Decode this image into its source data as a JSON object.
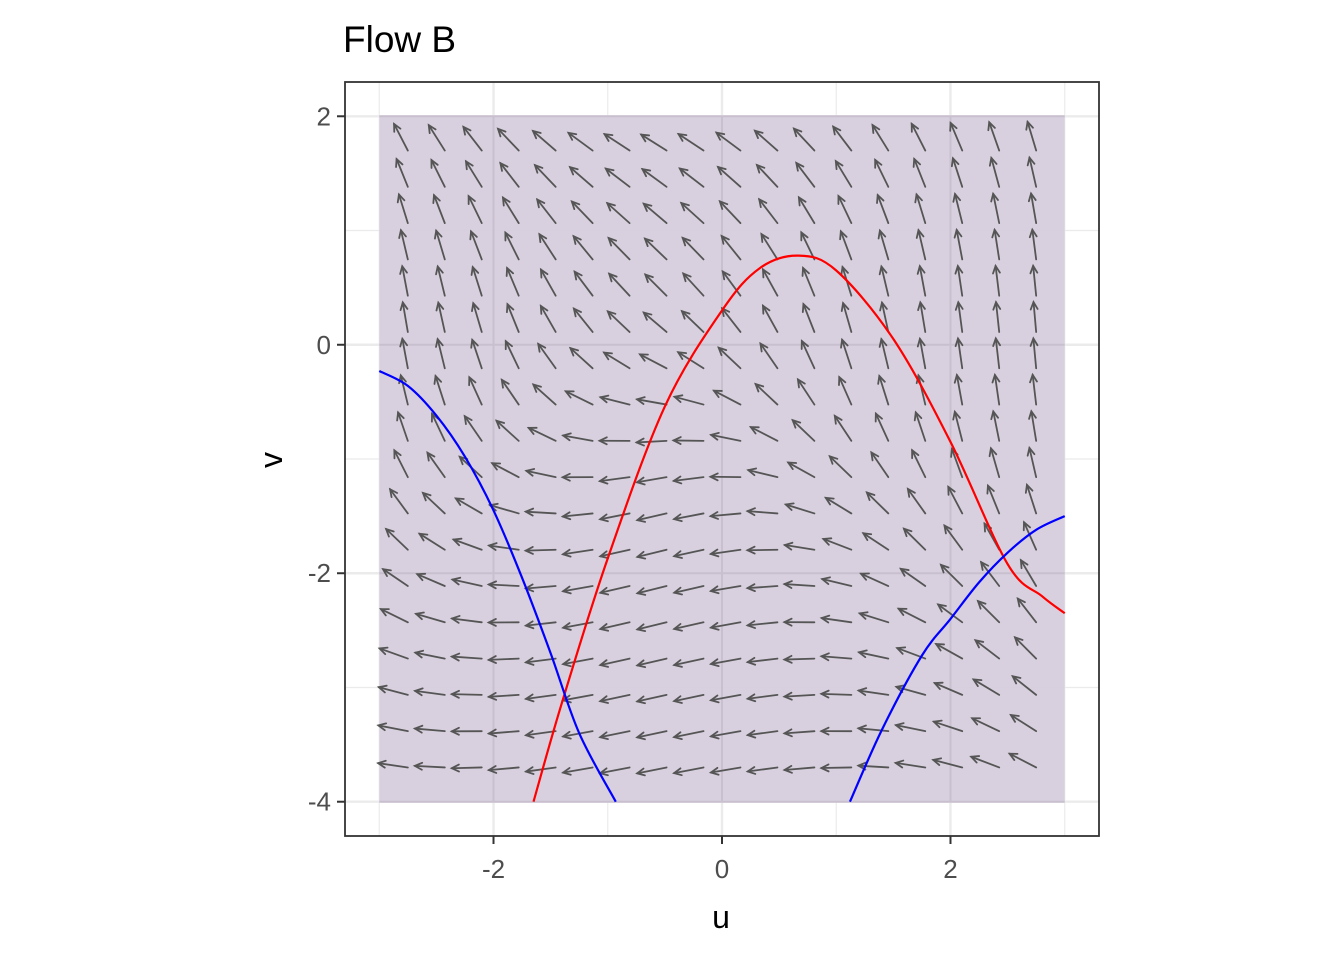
{
  "chart_data": {
    "type": "line",
    "title": "Flow B",
    "xlabel": "u",
    "ylabel": "v",
    "xlim": [
      -3.3,
      3.3
    ],
    "ylim": [
      -4.3,
      2.3
    ],
    "x_ticks": [
      -2,
      0,
      2
    ],
    "x_tick_labels": [
      "-2",
      "0",
      "2"
    ],
    "y_ticks": [
      -4,
      -2,
      0,
      2
    ],
    "y_tick_labels": [
      "-4",
      "-2",
      "0",
      "2"
    ],
    "grid": true,
    "legend": "none",
    "region": {
      "u": [
        -3,
        3
      ],
      "v": [
        -4,
        2
      ],
      "color": "#d6cddc"
    },
    "vector_field": {
      "u_range": [
        -2.75,
        2.75
      ],
      "v_range": [
        -3.7,
        1.7
      ],
      "nu": 18,
      "nv": 18,
      "du": "-1 - v*v",
      "dv": "1 + u + u*u + v",
      "color": "#555555"
    },
    "series": [
      {
        "color": "#ff0000",
        "points": [
          [
            -1.65,
            -4.0
          ],
          [
            -1.4,
            -3.13
          ],
          [
            -1.0,
            -1.87
          ],
          [
            -0.5,
            -0.54
          ],
          [
            0.0,
            0.3
          ],
          [
            0.33,
            0.67
          ],
          [
            0.67,
            0.78
          ],
          [
            1.0,
            0.65
          ],
          [
            1.5,
            0.05
          ],
          [
            2.0,
            -0.85
          ],
          [
            2.5,
            -1.92
          ],
          [
            2.8,
            -2.2
          ],
          [
            3.0,
            -2.35
          ]
        ]
      },
      {
        "color": "#0000ff",
        "points": [
          [
            -3.0,
            -0.23
          ],
          [
            -2.75,
            -0.36
          ],
          [
            -2.5,
            -0.62
          ],
          [
            -2.25,
            -0.98
          ],
          [
            -2.0,
            -1.45
          ],
          [
            -1.75,
            -2.04
          ],
          [
            -1.5,
            -2.7
          ],
          [
            -1.25,
            -3.4
          ],
          [
            -0.93,
            -4.0
          ]
        ]
      },
      {
        "color": "#0000ff",
        "points": [
          [
            1.12,
            -4.0
          ],
          [
            1.4,
            -3.37
          ],
          [
            1.75,
            -2.72
          ],
          [
            2.0,
            -2.4
          ],
          [
            2.25,
            -2.08
          ],
          [
            2.5,
            -1.82
          ],
          [
            2.75,
            -1.62
          ],
          [
            3.0,
            -1.5
          ]
        ]
      }
    ]
  }
}
